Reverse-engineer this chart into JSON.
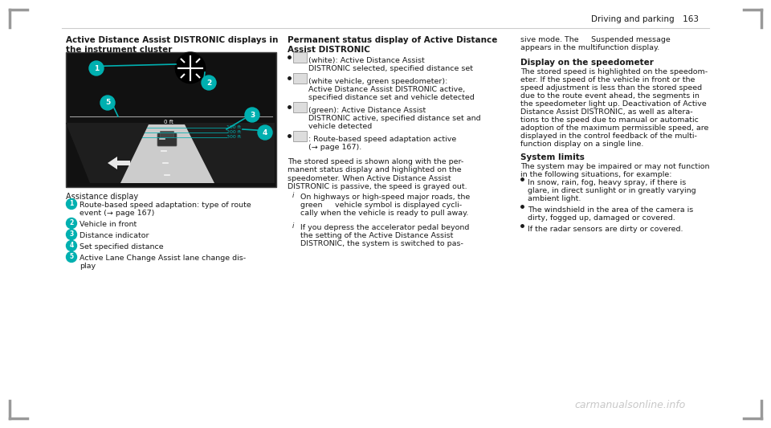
{
  "bg_color": "#ffffff",
  "page_header": "Driving and parking  163",
  "section_title_left": "Active Distance Assist DISTRONIC displays in\nthe instrument cluster",
  "section_title_mid": "Permanent status display of Active Distance\nAssist DISTRONIC",
  "section_title_right_1": "Display on the speedometer",
  "section_title_right_2": "System limits",
  "assistance_display_label": "Assistance display",
  "left_bullets": [
    {
      "num": "1",
      "text": "Route-based speed adaptation: type of route\nevent (→ page 167)"
    },
    {
      "num": "2",
      "text": "Vehicle in front"
    },
    {
      "num": "3",
      "text": "Distance indicator"
    },
    {
      "num": "4",
      "text": "Set specified distance"
    },
    {
      "num": "5",
      "text": "Active Lane Change Assist lane change dis-\nplay"
    }
  ],
  "mid_bullets": [
    "(white): Active Distance Assist\nDISTRONIC selected, specified distance set",
    "(white vehicle, green speedometer):\nActive Distance Assist DISTRONIC active,\nspecified distance set and vehicle detected",
    "(green): Active Distance Assist\nDISTRONIC active, specified distance set and\nvehicle detected",
    ": Route-based speed adaptation active\n(→ page 167)."
  ],
  "mid_para": "The stored speed is shown along with the per-\nmanent status display and highlighted on the\nspeedometer. When Active Distance Assist\nDISTRONIC is passive, the speed is grayed out.",
  "mid_info_1": "On highways or high-speed major roads, the\ngreen   vehicle symbol is displayed cycli-\ncally when the vehicle is ready to pull away.",
  "mid_info_2": "If you depress the accelerator pedal beyond\nthe setting of the Active Distance Assist\nDISTRONIC, the system is switched to pas-",
  "right_para_suspended": "sive mode. The   Suspended message\nappears in the multifunction display.",
  "right_speedometer_text": "The stored speed is highlighted on the speedom-\neter. If the speed of the vehicle in front or the\nspeed adjustment is less than the stored speed\ndue to the route event ahead, the segments in\nthe speedometer light up. Deactivation of Active\nDistance Assist DISTRONIC, as well as altera-\ntions to the speed due to manual or automatic\nadoption of the maximum permissible speed, are\ndisplayed in the control feedback of the multi-\nfunction display on a single line.",
  "right_system_limits": "The system may be impaired or may not function\nin the following situations, for example:",
  "right_bullets_limits": [
    "In snow, rain, fog, heavy spray, if there is\nglare, in direct sunlight or in greatly varying\nambient light.",
    "The windshield in the area of the camera is\ndirty, fogged up, damaged or covered.",
    "If the radar sensors are dirty or covered."
  ],
  "teal_color": "#00b0b0",
  "text_color": "#1a1a1a",
  "header_line_color": "#cccccc",
  "watermark": "carmanualsonline.info"
}
